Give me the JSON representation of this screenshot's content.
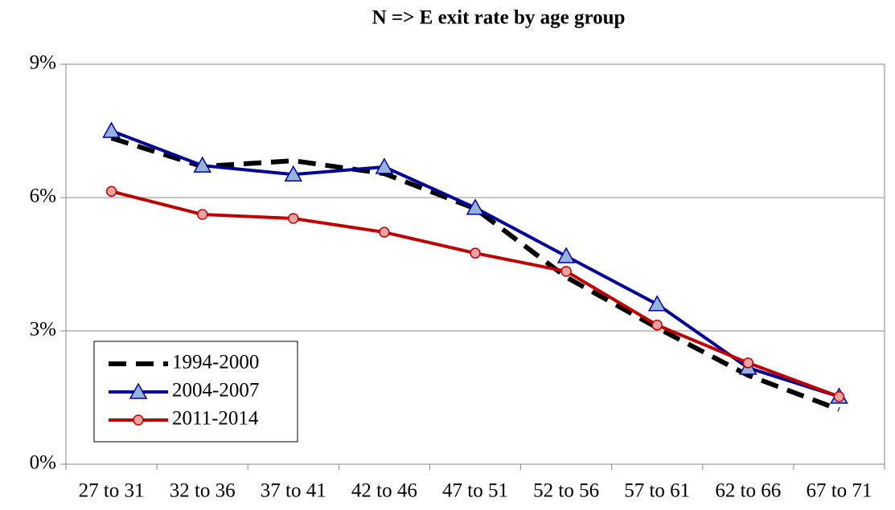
{
  "chart_data": {
    "type": "line",
    "title": "N => E exit rate by age group",
    "categories": [
      "27 to 31",
      "32 to 36",
      "37 to 41",
      "42 to 46",
      "47 to 51",
      "52 to 56",
      "57 to 61",
      "62 to 66",
      "67 to 71"
    ],
    "series": [
      {
        "name": "1994-2000",
        "color": "#000000",
        "dash": true,
        "marker": null,
        "values": [
          7.34,
          6.7,
          6.83,
          6.54,
          5.75,
          4.21,
          3.07,
          2.0,
          1.23
        ]
      },
      {
        "name": "2004-2007",
        "color": "#000099",
        "dash": false,
        "marker": "triangle",
        "marker_color": "#95b3e0",
        "values": [
          7.5,
          6.72,
          6.52,
          6.69,
          5.77,
          4.68,
          3.6,
          2.17,
          1.52
        ]
      },
      {
        "name": "2011-2014",
        "color": "#c00000",
        "dash": false,
        "marker": "circle",
        "marker_color": "#e9a3a3",
        "values": [
          6.14,
          5.62,
          5.53,
          5.22,
          4.75,
          4.34,
          3.13,
          2.28,
          1.52
        ]
      }
    ],
    "ylim": [
      0,
      9
    ],
    "yticks": [
      {
        "value": 0,
        "label": "0%"
      },
      {
        "value": 3,
        "label": "3%"
      },
      {
        "value": 6,
        "label": "6%"
      },
      {
        "value": 9,
        "label": "9%"
      }
    ],
    "grid": true,
    "legend": "lower left"
  }
}
